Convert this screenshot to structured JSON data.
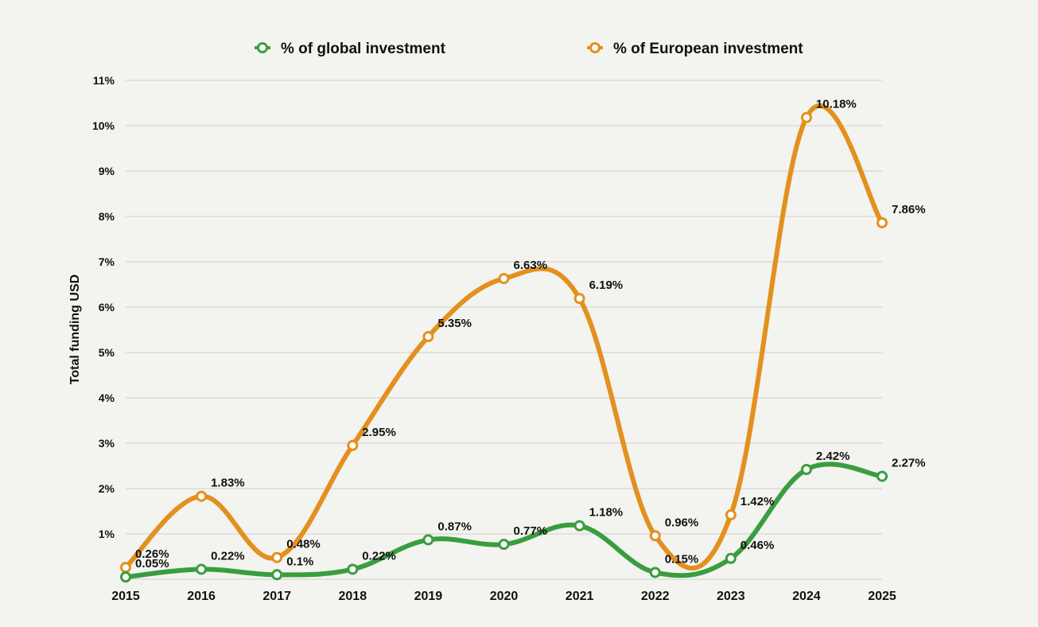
{
  "chart_data": {
    "type": "line",
    "title": "",
    "xlabel": "",
    "ylabel": "Total funding USD",
    "ylim": [
      0,
      11
    ],
    "y_ticks": [
      1,
      2,
      3,
      4,
      5,
      6,
      7,
      8,
      9,
      10,
      11
    ],
    "y_tick_suffix": "%",
    "grid": "horizontal",
    "legend_position": "top",
    "smooth": true,
    "categories": [
      "2015",
      "2016",
      "2017",
      "2018",
      "2019",
      "2020",
      "2021",
      "2022",
      "2023",
      "2024",
      "2025"
    ],
    "series": [
      {
        "name": "% of European investment",
        "color": "#e3901e",
        "values": [
          0.26,
          1.83,
          0.48,
          2.95,
          5.35,
          6.63,
          6.19,
          0.96,
          1.42,
          10.18,
          7.86
        ],
        "labels": [
          "0.26%",
          "1.83%",
          "0.48%",
          "2.95%",
          "5.35%",
          "6.63%",
          "6.19%",
          "0.96%",
          "1.42%",
          "10.18%",
          "7.86%"
        ]
      },
      {
        "name": "% of global investment",
        "color": "#3a9d3f",
        "values": [
          0.05,
          0.22,
          0.1,
          0.22,
          0.87,
          0.77,
          1.18,
          0.15,
          0.46,
          2.42,
          2.27
        ],
        "labels": [
          "0.05%",
          "0.22%",
          "0.1%",
          "0.22%",
          "0.87%",
          "0.77%",
          "1.18%",
          "0.15%",
          "0.46%",
          "2.42%",
          "2.27%"
        ]
      }
    ],
    "legend": [
      {
        "label": "% of global investment",
        "color": "#3a9d3f"
      },
      {
        "label": "% of European investment",
        "color": "#e3901e"
      }
    ]
  }
}
